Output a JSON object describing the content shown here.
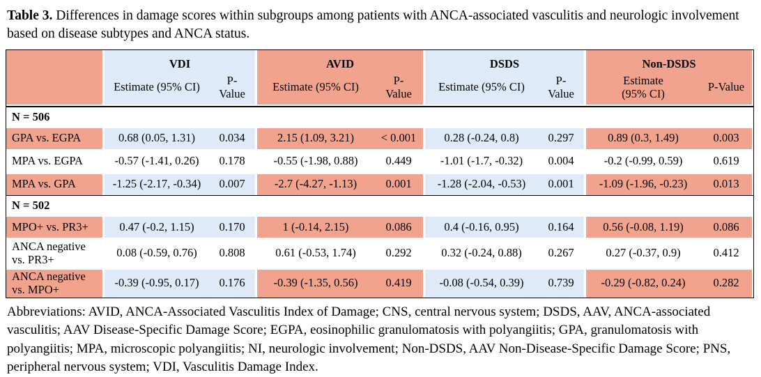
{
  "caption": {
    "label": "Table 3.",
    "text": " Differences in damage scores within subgroups among patients with ANCA-associated vasculitis and neurologic involvement based on disease subtypes and ANCA status."
  },
  "colors": {
    "salmon": "#F2A38D",
    "light_blue": "#DEEAF7",
    "border": "#000000"
  },
  "table": {
    "groups": [
      {
        "name": "VDI"
      },
      {
        "name": "AVID"
      },
      {
        "name": "DSDS"
      },
      {
        "name": "Non-DSDS"
      }
    ],
    "headers": {
      "estimate": "Estimate (95% CI)",
      "estimate_wrapped": [
        "Estimate",
        "(95% CI)"
      ],
      "pvalue": "P-Value",
      "pvalue_wrapped": [
        "P-",
        "Value"
      ]
    },
    "sections": [
      {
        "header": "N = 506",
        "rows": [
          {
            "label": "GPA vs. EGPA",
            "vdi_est": "0.68 (0.05, 1.31)",
            "vdi_p": "0.034",
            "avid_est": "2.15 (1.09, 3.21)",
            "avid_p": "< 0.001",
            "dsds_est": "0.28 (-0.24, 0.8)",
            "dsds_p": "0.297",
            "nondsds_est": "0.89 (0.3, 1.49)",
            "nondsds_p": "0.003"
          },
          {
            "label": "MPA vs. EGPA",
            "vdi_est": "-0.57 (-1.41, 0.26)",
            "vdi_p": "0.178",
            "avid_est": "-0.55 (-1.98, 0.88)",
            "avid_p": "0.449",
            "dsds_est": "-1.01 (-1.7, -0.32)",
            "dsds_p": "0.004",
            "nondsds_est": "-0.2 (-0.99, 0.59)",
            "nondsds_p": "0.619"
          },
          {
            "label": "MPA vs. GPA",
            "vdi_est": "-1.25 (-2.17, -0.34)",
            "vdi_p": "0.007",
            "avid_est": "-2.7 (-4.27, -1.13)",
            "avid_p": "0.001",
            "dsds_est": "-1.28 (-2.04, -0.53)",
            "dsds_p": "0.001",
            "nondsds_est": "-1.09 (-1.96, -0.23)",
            "nondsds_p": "0.013"
          }
        ]
      },
      {
        "header": "N = 502",
        "rows": [
          {
            "label": "MPO+ vs. PR3+",
            "vdi_est": "0.47 (-0.2, 1.15)",
            "vdi_p": "0.170",
            "avid_est": "1 (-0.14, 2.15)",
            "avid_p": "0.086",
            "dsds_est": "0.4 (-0.16, 0.95)",
            "dsds_p": "0.164",
            "nondsds_est": "0.56 (-0.08, 1.19)",
            "nondsds_p": "0.086"
          },
          {
            "label": "ANCA negative vs. PR3+",
            "vdi_est": "0.08 (-0.59, 0.76)",
            "vdi_p": "0.808",
            "avid_est": "0.61 (-0.53, 1.74)",
            "avid_p": "0.292",
            "dsds_est": "0.32 (-0.24, 0.88)",
            "dsds_p": "0.267",
            "nondsds_est": "0.27 (-0.37, 0.9)",
            "nondsds_p": "0.412"
          },
          {
            "label": "ANCA negative vs. MPO+",
            "vdi_est": "-0.39 (-0.95, 0.17)",
            "vdi_p": "0.176",
            "avid_est": "-0.39 (-1.35, 0.56)",
            "avid_p": "0.419",
            "dsds_est": "-0.08 (-0.54, 0.39)",
            "dsds_p": "0.739",
            "nondsds_est": "-0.29 (-0.82, 0.24)",
            "nondsds_p": "0.282"
          }
        ]
      }
    ]
  },
  "footnote": "Abbreviations: AVID, ANCA-Associated Vasculitis Index of Damage; CNS, central nervous system; DSDS, AAV, ANCA-associated vasculitis; AAV Disease-Specific Damage Score; EGPA, eosinophilic granulomatosis with polyangiitis; GPA, granulomatosis with polyangiitis; MPA, microscopic polyangiitis; NI, neurologic involvement; Non-DSDS, AAV Non-Disease-Specific Damage Score; PNS, peripheral nervous system; VDI, Vasculitis Damage Index."
}
